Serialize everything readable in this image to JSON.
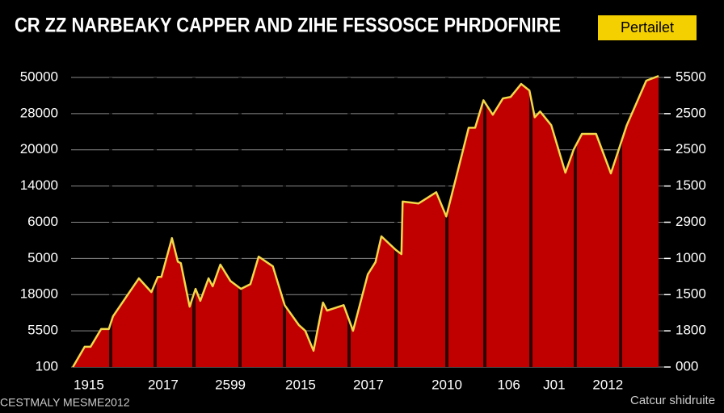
{
  "chart_data": {
    "type": "area",
    "title": "CR ZZ NARBEAKY CAPPER AND ZIHE FESSOSCE PHRDOFNIRE",
    "button": "Pertailet",
    "annotations": [
      "CESTMALY MESME2012",
      "Catcur shidruite"
    ],
    "color": "#c00000",
    "line_color": "#f2d84a",
    "grid": true,
    "xlim": [
      0,
      100
    ],
    "ylim": [
      0,
      8
    ],
    "y2lim": [
      0,
      8
    ],
    "xticks": [
      {
        "value": 3.0,
        "label": "1915"
      },
      {
        "value": 15.6,
        "label": "2017"
      },
      {
        "value": 27.0,
        "label": "2599"
      },
      {
        "value": 38.9,
        "label": "2015"
      },
      {
        "value": 50.4,
        "label": "2017"
      },
      {
        "value": 63.7,
        "label": "2010"
      },
      {
        "value": 74.2,
        "label": "106"
      },
      {
        "value": 81.9,
        "label": "J01"
      },
      {
        "value": 91.0,
        "label": "2012"
      }
    ],
    "yticks": [
      {
        "value": 0,
        "label": "100"
      },
      {
        "value": 1,
        "label": "5500"
      },
      {
        "value": 2,
        "label": "18000"
      },
      {
        "value": 3,
        "label": "5000"
      },
      {
        "value": 4,
        "label": "6000"
      },
      {
        "value": 5,
        "label": "14000"
      },
      {
        "value": 6,
        "label": "20000"
      },
      {
        "value": 7,
        "label": "28000"
      },
      {
        "value": 8,
        "label": "50000"
      }
    ],
    "y2ticks": [
      {
        "value": 0,
        "label": "000"
      },
      {
        "value": 1,
        "label": "1800"
      },
      {
        "value": 2,
        "label": "1500"
      },
      {
        "value": 3,
        "label": "1000"
      },
      {
        "value": 4,
        "label": "2900"
      },
      {
        "value": 5,
        "label": "1500"
      },
      {
        "value": 6,
        "label": "2500"
      },
      {
        "value": 7,
        "label": "2500"
      },
      {
        "value": 8,
        "label": "5500"
      }
    ],
    "x": [
      0.3,
      2.3,
      3.3,
      5.1,
      6.4,
      7.1,
      9.9,
      11.5,
      13.6,
      14.7,
      15.3,
      17.1,
      18.1,
      18.6,
      20.1,
      21.1,
      21.9,
      23.3,
      24.0,
      25.3,
      27.0,
      28.8,
      30.4,
      31.8,
      34.2,
      36.2,
      38.6,
      39.7,
      41.1,
      42.7,
      43.4,
      46.2,
      47.8,
      50.3,
      51.6,
      52.6,
      55.1,
      56.0,
      56.2,
      58.9,
      61.9,
      63.6,
      67.4,
      68.5,
      69.9,
      71.5,
      73.2,
      74.5,
      76.3,
      77.7,
      78.6,
      79.5,
      81.4,
      83.8,
      85.2,
      86.6,
      89.0,
      91.5,
      94.2,
      97.5,
      99.6
    ],
    "values": [
      0,
      0.56,
      0.56,
      1.05,
      1.05,
      1.4,
      2.07,
      2.45,
      2.07,
      2.49,
      2.49,
      3.56,
      2.91,
      2.87,
      1.67,
      2.16,
      1.83,
      2.45,
      2.23,
      2.83,
      2.38,
      2.16,
      2.29,
      3.05,
      2.78,
      1.71,
      1.16,
      1.0,
      0.45,
      1.78,
      1.56,
      1.71,
      1.0,
      2.56,
      2.9,
      3.61,
      3.23,
      3.12,
      4.57,
      4.52,
      4.83,
      4.16,
      6.61,
      6.61,
      7.37,
      6.97,
      7.42,
      7.46,
      7.82,
      7.64,
      6.9,
      7.06,
      6.68,
      5.37,
      6.01,
      6.44,
      6.44,
      5.35,
      6.68,
      7.91,
      8.04
    ]
  }
}
